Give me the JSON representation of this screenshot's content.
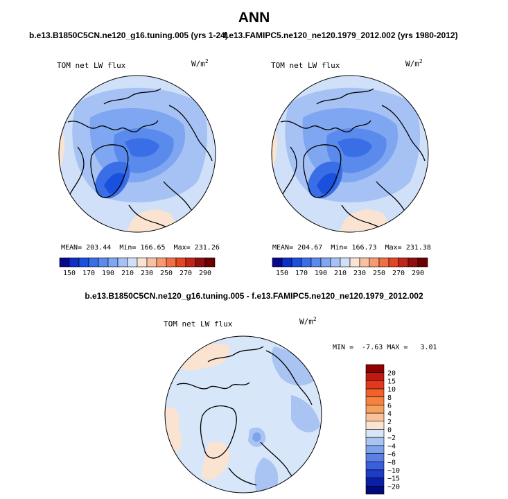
{
  "main_title": "ANN",
  "case1_title": "b.e13.B1850C5CN.ne120_g16.tuning.005 (yrs 1-24)",
  "case2_title": "f.e13.FAMIPC5.ne120_ne120.1979_2012.002 (yrs 1980-2012)",
  "diff_title": "b.e13.B1850C5CN.ne120_g16.tuning.005 - f.e13.FAMIPC5.ne120_ne120.1979_2012.002",
  "field_label": "TOM net LW flux",
  "units_base": "W/m",
  "units_exp": "2",
  "panel1_stats": {
    "mean_label": "MEAN=",
    "mean": "203.44",
    "min_label": "Min=",
    "min": "166.65",
    "max_label": "Max=",
    "max": "231.26"
  },
  "panel2_stats": {
    "mean_label": "MEAN=",
    "mean": "204.67",
    "min_label": "Min=",
    "min": "166.73",
    "max_label": "Max=",
    "max": "231.38"
  },
  "diff_stats": {
    "min_label": "MIN =",
    "min": "-7.63",
    "max_label": "MAX =",
    "max": "3.01"
  },
  "chart_data": [
    {
      "type": "heatmap",
      "projection": "north-polar-stereographic",
      "title": "b.e13.B1850C5CN.ne120_g16.tuning.005 (yrs 1-24)",
      "variable": "TOM net LW flux",
      "units": "W/m2",
      "mean": 203.44,
      "min": 166.65,
      "max": 231.26,
      "colorbar": {
        "orientation": "horizontal",
        "levels": [
          150,
          160,
          170,
          180,
          190,
          200,
          210,
          220,
          230,
          240,
          250,
          260,
          270,
          280,
          290
        ],
        "tick_labels": [
          "150",
          "170",
          "190",
          "210",
          "230",
          "250",
          "270",
          "290"
        ],
        "colors": [
          "#08088f",
          "#0c2fc6",
          "#1a50de",
          "#3a6ee6",
          "#5a8aec",
          "#7fa6f0",
          "#a6c1f4",
          "#cfe0f8",
          "#fbe3d2",
          "#f9c0a2",
          "#f79a72",
          "#f26e43",
          "#e24622",
          "#c1251a",
          "#8f0f0f",
          "#6b0000"
        ]
      }
    },
    {
      "type": "heatmap",
      "projection": "north-polar-stereographic",
      "title": "f.e13.FAMIPC5.ne120_ne120.1979_2012.002 (yrs 1980-2012)",
      "variable": "TOM net LW flux",
      "units": "W/m2",
      "mean": 204.67,
      "min": 166.73,
      "max": 231.38,
      "colorbar": {
        "orientation": "horizontal",
        "levels": [
          150,
          160,
          170,
          180,
          190,
          200,
          210,
          220,
          230,
          240,
          250,
          260,
          270,
          280,
          290
        ],
        "tick_labels": [
          "150",
          "170",
          "190",
          "210",
          "230",
          "250",
          "270",
          "290"
        ],
        "colors": [
          "#08088f",
          "#0c2fc6",
          "#1a50de",
          "#3a6ee6",
          "#5a8aec",
          "#7fa6f0",
          "#a6c1f4",
          "#cfe0f8",
          "#fbe3d2",
          "#f9c0a2",
          "#f79a72",
          "#f26e43",
          "#e24622",
          "#c1251a",
          "#8f0f0f",
          "#6b0000"
        ]
      }
    },
    {
      "type": "heatmap",
      "projection": "north-polar-stereographic",
      "title": "b.e13.B1850C5CN.ne120_g16.tuning.005 - f.e13.FAMIPC5.ne120_ne120.1979_2012.002",
      "variable": "TOM net LW flux",
      "units": "W/m2",
      "min": -7.63,
      "max": 3.01,
      "colorbar": {
        "orientation": "vertical",
        "levels": [
          20,
          15,
          10,
          8,
          6,
          4,
          2,
          0,
          -2,
          -4,
          -6,
          -8,
          -10,
          -15,
          -20
        ],
        "tick_labels": [
          "20",
          "15",
          "10",
          "8",
          "6",
          "4",
          "2",
          "0",
          "−2",
          "−4",
          "−6",
          "−8",
          "−10",
          "−15",
          "−20"
        ],
        "colors": [
          "#8f0000",
          "#c01a10",
          "#e03a1e",
          "#f2602e",
          "#f5823f",
          "#f7a15e",
          "#f9c39a",
          "#fbe3d2",
          "#d7e6f8",
          "#a9c4f2",
          "#7fa2ec",
          "#5a80e4",
          "#3a5edc",
          "#1e3cc8",
          "#0a1ea6",
          "#000a7a"
        ]
      }
    }
  ]
}
